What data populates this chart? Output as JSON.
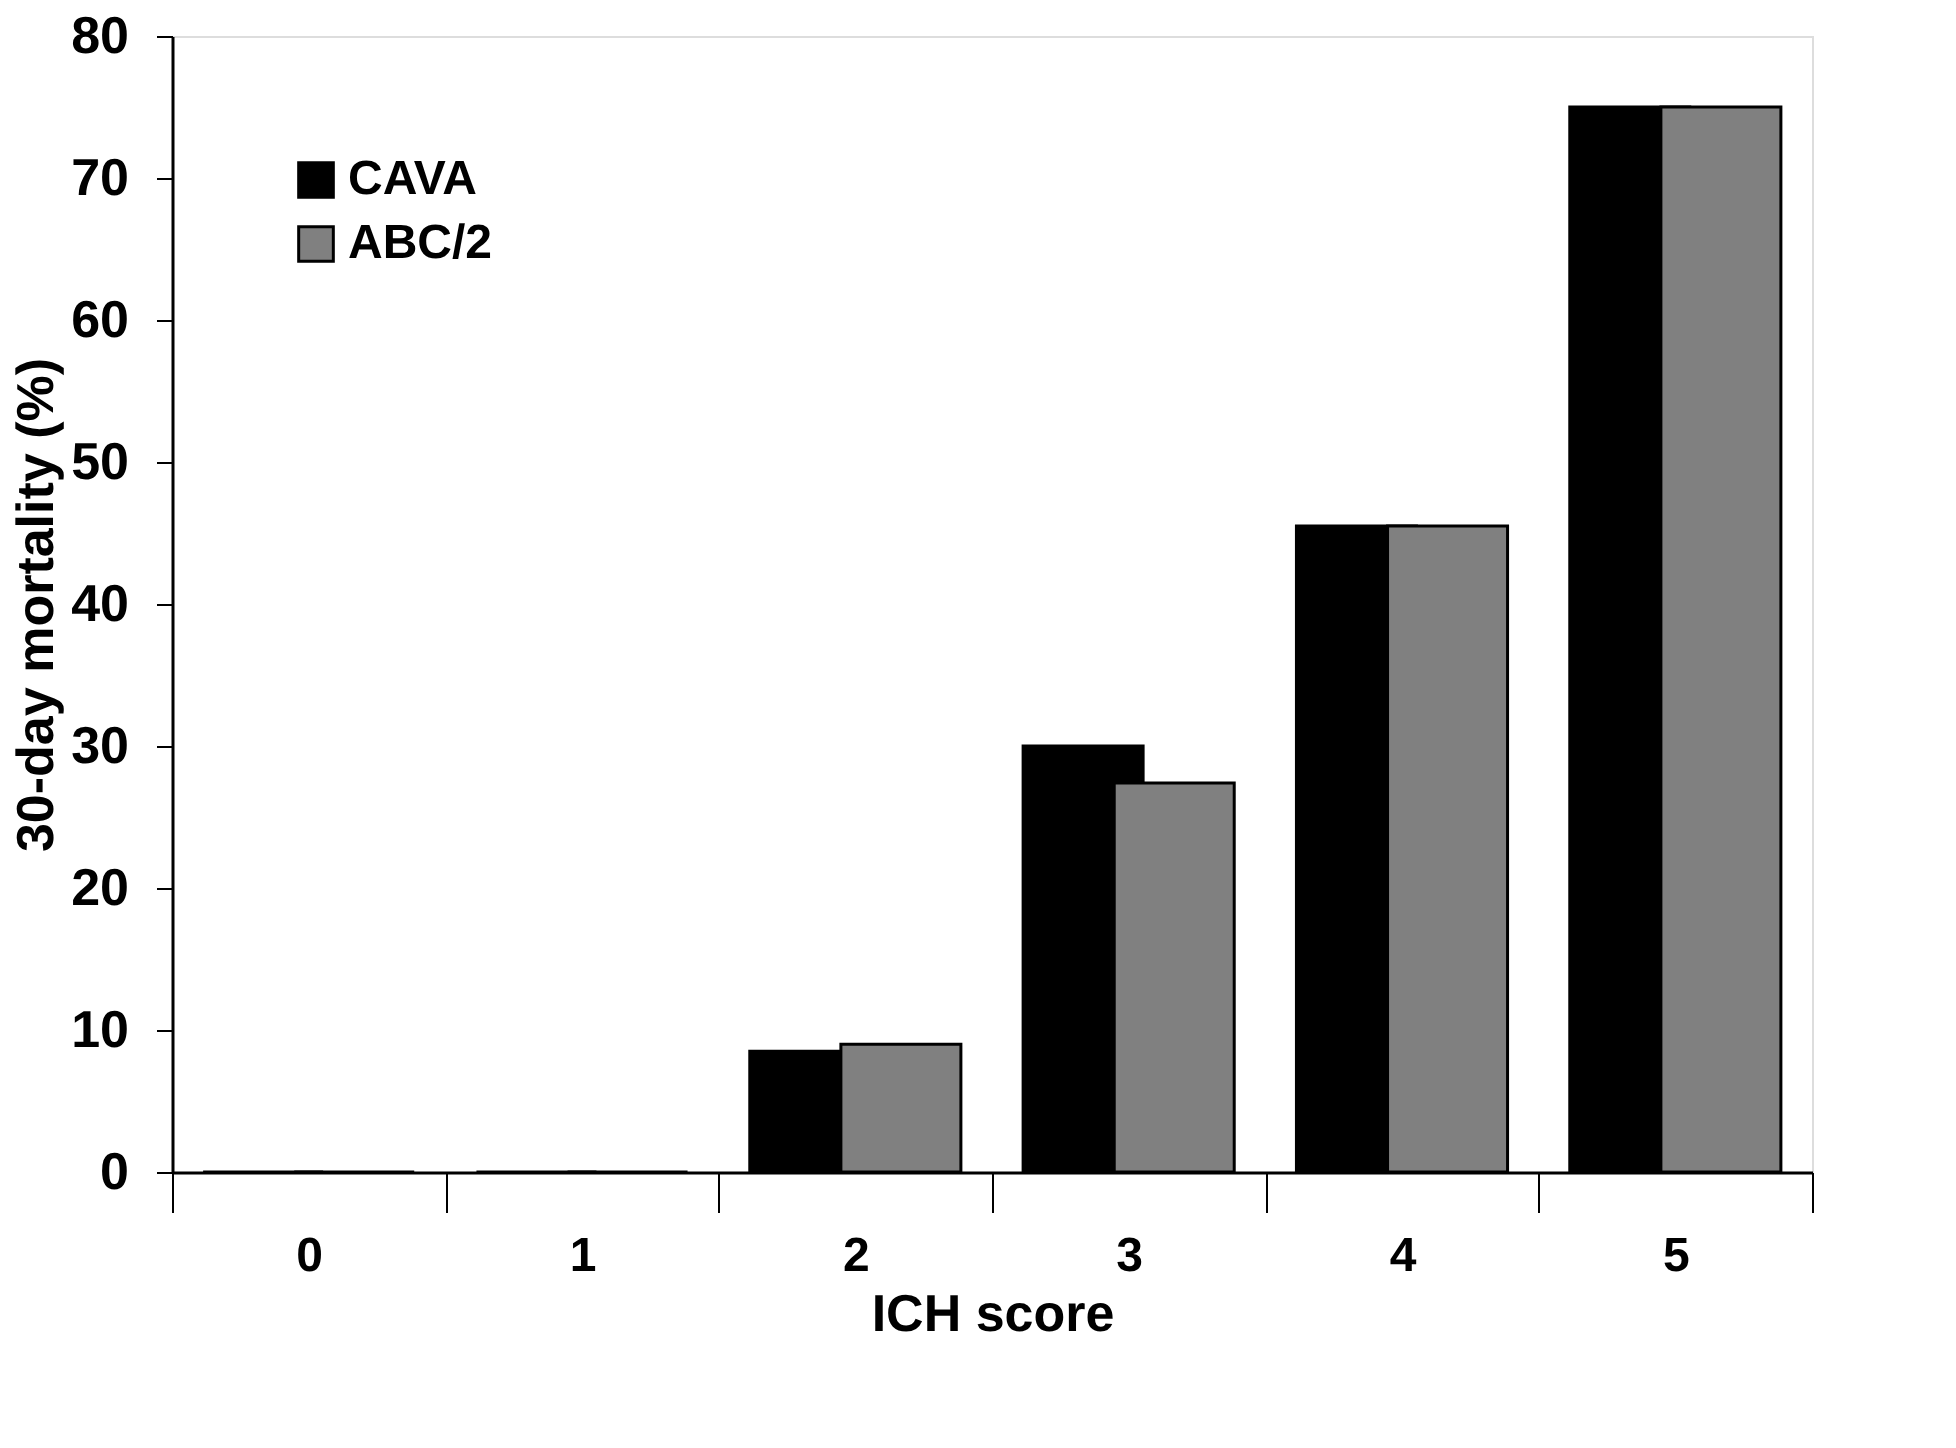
{
  "chart_data": {
    "type": "bar",
    "xlabel": "ICH score",
    "ylabel": "30-day mortality (%)",
    "categories": [
      "0",
      "1",
      "2",
      "3",
      "4",
      "5"
    ],
    "series": [
      {
        "name": "CAVA",
        "color": "#000000",
        "values": [
          0,
          0,
          8.5,
          30.0,
          45.5,
          75.0
        ]
      },
      {
        "name": "ABC/2",
        "color": "#808080",
        "values": [
          0,
          0,
          9.0,
          27.4,
          45.5,
          75.0
        ]
      }
    ],
    "ylim": [
      0,
      80
    ],
    "yticks": [
      0,
      10,
      20,
      30,
      40,
      50,
      60,
      70,
      80
    ],
    "grid": false,
    "legend": "top left"
  }
}
